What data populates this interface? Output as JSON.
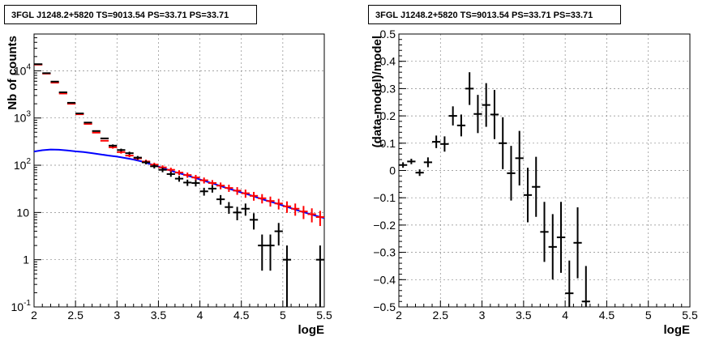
{
  "chart_data": [
    {
      "type": "scatter",
      "title": "3FGL J1248.2+5820 TS=9013.54 PS=33.71 PS=33.71",
      "xlabel": "logE",
      "ylabel": "Nb of counts",
      "yscale": "log",
      "xlim": [
        2,
        5.5
      ],
      "ylim": [
        0.1,
        60000
      ],
      "grid": true,
      "x_ticks": [
        "2",
        "2.5",
        "3",
        "3.5",
        "4",
        "4.5",
        "5",
        "5.5"
      ],
      "y_ticks": [
        "10^-1",
        "1",
        "10",
        "10^2",
        "10^3",
        "10^4"
      ],
      "bin_edges": [
        2.0,
        2.1,
        2.2,
        2.3,
        2.4,
        2.5,
        2.6,
        2.7,
        2.8,
        2.9,
        3.0,
        3.1,
        3.2,
        3.3,
        3.4,
        3.5,
        3.6,
        3.7,
        3.8,
        3.9,
        4.0,
        4.1,
        4.2,
        4.3,
        4.4,
        4.5,
        4.6,
        4.7,
        4.8,
        4.9,
        5.0,
        5.1,
        5.2,
        5.3,
        5.4,
        5.5
      ],
      "series": [
        {
          "style": "red-error-bars",
          "color": "#ff0000",
          "x": [
            2.05,
            2.15,
            2.25,
            2.35,
            2.45,
            2.55,
            2.65,
            2.75,
            2.85,
            2.95,
            3.05,
            3.15,
            3.25,
            3.35,
            3.45,
            3.55,
            3.65,
            3.75,
            3.85,
            3.95,
            4.05,
            4.15,
            4.25,
            4.35,
            4.45,
            4.55,
            4.65,
            4.75,
            4.85,
            4.95,
            5.05,
            5.15,
            5.25,
            5.35,
            5.45
          ],
          "y": [
            13500,
            8700,
            5600,
            3300,
            2000,
            1200,
            750,
            490,
            330,
            240,
            190,
            160,
            140,
            120,
            103,
            90,
            80,
            70,
            62,
            55,
            48,
            42,
            37,
            33,
            29,
            25.5,
            22.5,
            20,
            17.5,
            15.5,
            13.5,
            12,
            10.5,
            9.2,
            8
          ]
        },
        {
          "style": "black-data-points",
          "color": "#000000",
          "x": [
            2.05,
            2.15,
            2.25,
            2.35,
            2.45,
            2.55,
            2.65,
            2.75,
            2.85,
            2.95,
            3.05,
            3.15,
            3.25,
            3.35,
            3.45,
            3.55,
            3.65,
            3.75,
            3.85,
            3.95,
            4.05,
            4.15,
            4.25,
            4.35,
            4.45,
            4.55,
            4.65,
            4.75,
            4.85,
            4.95,
            5.05,
            5.45
          ],
          "y": [
            13800,
            8900,
            5900,
            3500,
            2100,
            1250,
            800,
            530,
            370,
            260,
            210,
            180,
            145,
            115,
            95,
            80,
            65,
            52,
            43,
            42,
            28,
            32,
            19,
            13,
            10,
            12,
            7,
            2,
            2,
            4,
            1,
            1
          ]
        },
        {
          "style": "blue-model-curve",
          "color": "#0000ff",
          "x": [
            2.0,
            2.1,
            2.2,
            2.3,
            2.4,
            2.5,
            2.6,
            2.7,
            2.8,
            2.9,
            3.0,
            3.1,
            3.2,
            3.3,
            3.4,
            3.5,
            3.6,
            3.7,
            3.8,
            3.9,
            4.0,
            4.1,
            4.2,
            4.3,
            4.4,
            4.5,
            4.6,
            4.7,
            4.8,
            4.9,
            5.0,
            5.1,
            5.2,
            5.3,
            5.4,
            5.5
          ],
          "y": [
            195,
            208,
            215,
            213,
            206,
            197,
            190,
            180,
            170,
            160,
            152,
            142,
            132,
            120,
            106,
            94,
            82,
            72,
            64,
            57,
            50,
            44,
            39,
            34,
            30,
            26.5,
            23.5,
            20.5,
            18,
            16,
            14,
            12.3,
            10.8,
            9.6,
            8.5,
            7.6
          ]
        }
      ]
    },
    {
      "type": "scatter",
      "title": "3FGL J1248.2+5820 TS=9013.54 PS=33.71 PS=33.71",
      "xlabel": "logE",
      "ylabel": "(data-model)/model",
      "xlim": [
        2,
        5.5
      ],
      "ylim": [
        -0.5,
        0.5
      ],
      "grid": true,
      "x_ticks": [
        "2",
        "2.5",
        "3",
        "3.5",
        "4",
        "4.5",
        "5",
        "5.5"
      ],
      "y_ticks": [
        "−0.5",
        "−0.4",
        "−0.3",
        "−0.2",
        "−0.1",
        "0",
        "0.1",
        "0.2",
        "0.3",
        "0.4",
        "0.5"
      ],
      "series": [
        {
          "style": "black-data-points",
          "color": "#000000",
          "x": [
            2.05,
            2.15,
            2.25,
            2.35,
            2.45,
            2.55,
            2.65,
            2.75,
            2.85,
            2.95,
            3.05,
            3.15,
            3.25,
            3.35,
            3.45,
            3.55,
            3.65,
            3.75,
            3.85,
            3.95,
            4.05,
            4.15,
            4.25
          ],
          "y": [
            0.02,
            0.033,
            -0.008,
            0.03,
            0.105,
            0.097,
            0.2,
            0.165,
            0.3,
            0.207,
            0.24,
            0.205,
            0.1,
            -0.01,
            0.045,
            -0.09,
            -0.06,
            -0.225,
            -0.28,
            -0.245,
            -0.45,
            -0.265,
            -0.48
          ],
          "err": [
            0.01,
            0.01,
            0.012,
            0.018,
            0.023,
            0.028,
            0.035,
            0.04,
            0.06,
            0.07,
            0.08,
            0.09,
            0.095,
            0.1,
            0.1,
            0.1,
            0.11,
            0.11,
            0.12,
            0.13,
            0.12,
            0.13,
            0.13
          ]
        }
      ]
    }
  ]
}
